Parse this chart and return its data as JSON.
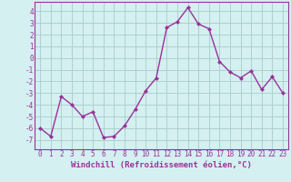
{
  "x": [
    0,
    1,
    2,
    3,
    4,
    5,
    6,
    7,
    8,
    9,
    10,
    11,
    12,
    13,
    14,
    15,
    16,
    17,
    18,
    19,
    20,
    21,
    22,
    23
  ],
  "y": [
    -6.0,
    -6.7,
    -3.3,
    -4.0,
    -5.0,
    -4.6,
    -6.8,
    -6.7,
    -5.8,
    -4.4,
    -2.8,
    -1.7,
    2.6,
    3.1,
    4.3,
    2.9,
    2.5,
    -0.3,
    -1.2,
    -1.7,
    -1.1,
    -2.7,
    -1.6,
    -3.0
  ],
  "line_color": "#993399",
  "marker": "D",
  "markersize": 2.0,
  "linewidth": 1.0,
  "xlabel": "Windchill (Refroidissement éolien,°C)",
  "xlim": [
    -0.5,
    23.5
  ],
  "ylim": [
    -7.8,
    4.8
  ],
  "yticks": [
    -7,
    -6,
    -5,
    -4,
    -3,
    -2,
    -1,
    0,
    1,
    2,
    3,
    4
  ],
  "xticks": [
    0,
    1,
    2,
    3,
    4,
    5,
    6,
    7,
    8,
    9,
    10,
    11,
    12,
    13,
    14,
    15,
    16,
    17,
    18,
    19,
    20,
    21,
    22,
    23
  ],
  "bg_color": "#d4f0f0",
  "grid_color": "#aacccc",
  "label_fontsize": 6.5,
  "tick_fontsize": 5.5
}
